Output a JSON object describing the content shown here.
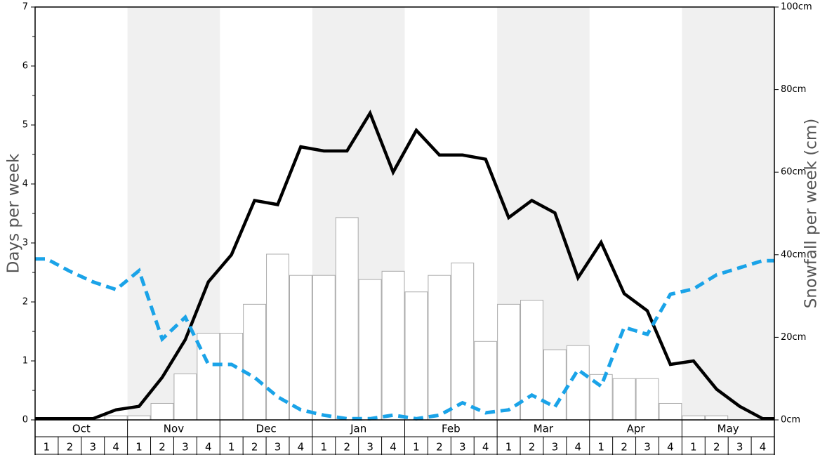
{
  "chart_data": {
    "type": "bar",
    "ylabel": "Days per week",
    "y2label": "Snowfall per week (cm)",
    "ylim": [
      0,
      7
    ],
    "y2lim": [
      0,
      100
    ],
    "y_ticks": [
      "0",
      "1",
      "2",
      "3",
      "4",
      "5",
      "6",
      "7"
    ],
    "y2_ticks": [
      "0cm",
      "20cm",
      "40cm",
      "60cm",
      "80cm",
      "100cm"
    ],
    "months": [
      "Oct",
      "Nov",
      "Dec",
      "Jan",
      "Feb",
      "Mar",
      "Apr",
      "May"
    ],
    "weeks": [
      "1",
      "2",
      "3",
      "4"
    ],
    "shaded_months": [
      1,
      3,
      5,
      7
    ],
    "grid": false,
    "series": [
      {
        "type": "bar",
        "axis": "left",
        "values": [
          0,
          0,
          0,
          0.07,
          0.07,
          0.28,
          0.78,
          1.47,
          1.47,
          1.96,
          2.81,
          2.45,
          2.45,
          3.43,
          2.38,
          2.52,
          2.17,
          2.45,
          2.66,
          1.33,
          1.96,
          2.03,
          1.19,
          1.26,
          0.77,
          0.7,
          0.7,
          0.28,
          0.07,
          0.07,
          0,
          0
        ]
      },
      {
        "type": "line",
        "axis": "left",
        "style": "solid",
        "color": "#000000",
        "values": [
          0.02,
          0.02,
          0.02,
          0.17,
          0.23,
          0.72,
          1.36,
          2.34,
          2.8,
          3.72,
          3.65,
          4.63,
          4.56,
          4.56,
          5.2,
          4.2,
          4.91,
          4.49,
          4.49,
          4.42,
          3.43,
          3.72,
          3.51,
          2.41,
          3.01,
          2.14,
          1.85,
          0.94,
          1.0,
          0.52,
          0.23,
          0.02
        ]
      },
      {
        "type": "line",
        "axis": "left",
        "style": "dashed",
        "color": "#1aa3e8",
        "values": [
          2.73,
          2.52,
          2.34,
          2.21,
          2.53,
          1.37,
          1.74,
          0.94,
          0.94,
          0.72,
          0.39,
          0.17,
          0.08,
          0.02,
          0.02,
          0.08,
          0.02,
          0.08,
          0.29,
          0.12,
          0.17,
          0.42,
          0.22,
          0.85,
          0.57,
          1.57,
          1.45,
          2.13,
          2.22,
          2.46,
          2.58,
          2.7
        ]
      }
    ]
  }
}
